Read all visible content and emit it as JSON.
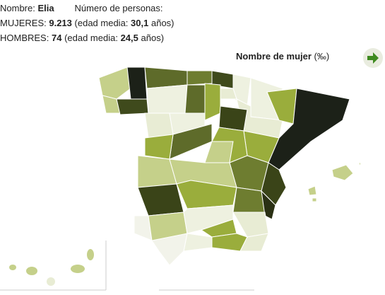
{
  "header": {
    "name_label": "Nombre:",
    "name": "Elia",
    "count_label": "Número de personas:",
    "women": {
      "label": "MUJERES:",
      "count": "9.213",
      "age_open": "(edad media:",
      "age": "30,1",
      "age_close": "años)"
    },
    "men": {
      "label": "HOMBRES:",
      "count": "74",
      "age_open": "(edad media:",
      "age": "24,5",
      "age_close": "años)"
    }
  },
  "legend": {
    "title": "Nombre de mujer",
    "unit": "(‰)"
  }
}
